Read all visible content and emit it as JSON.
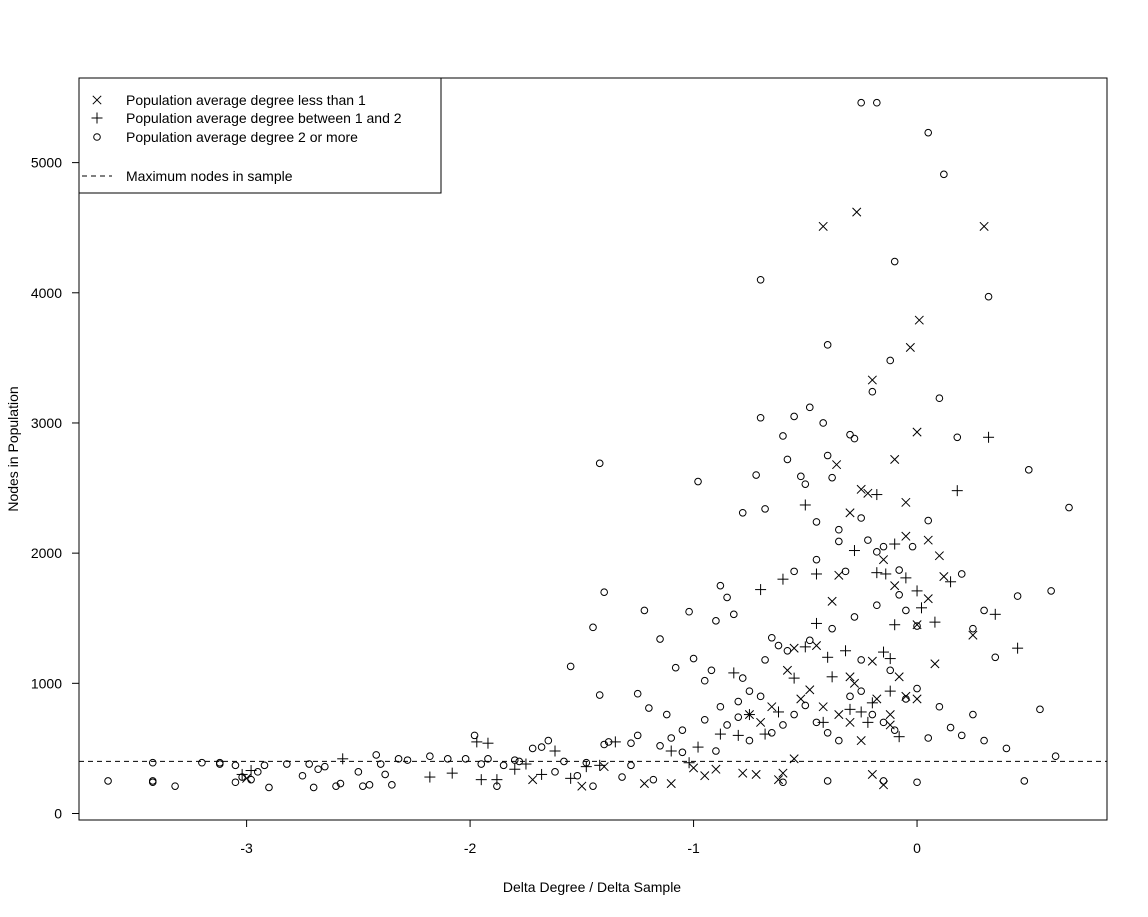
{
  "chart_data": {
    "type": "scatter",
    "title": "",
    "xlabel": "Delta Degree / Delta Sample",
    "ylabel": "Nodes in Population",
    "xlim": [
      -3.75,
      0.85
    ],
    "ylim": [
      -50,
      5650
    ],
    "xticks": [
      -3,
      -2,
      -1,
      0
    ],
    "xtick_labels": [
      "-3",
      "-2",
      "-1",
      "0"
    ],
    "yticks": [
      0,
      1000,
      2000,
      3000,
      4000,
      5000
    ],
    "ytick_labels": [
      "0",
      "1000",
      "2000",
      "3000",
      "4000",
      "5000"
    ],
    "grid": false,
    "legend_position": "top-left",
    "legend": [
      {
        "label": "Population average degree less than 1",
        "marker": "x"
      },
      {
        "label": "Population average degree between 1 and 2",
        "marker": "plus"
      },
      {
        "label": "Population average degree 2 or more",
        "marker": "circle"
      },
      {
        "label": "Maximum nodes in sample",
        "line": "dashed"
      }
    ],
    "reference_line": {
      "y": 400,
      "style": "dashed",
      "label": "Maximum nodes in sample"
    },
    "series": [
      {
        "name": "Population average degree less than 1",
        "marker": "x",
        "points": [
          [
            -3.0,
            270
          ],
          [
            -1.72,
            260
          ],
          [
            -1.5,
            210
          ],
          [
            -1.4,
            360
          ],
          [
            -1.22,
            230
          ],
          [
            -1.1,
            230
          ],
          [
            -1.0,
            350
          ],
          [
            -0.95,
            290
          ],
          [
            -0.9,
            340
          ],
          [
            -0.78,
            310
          ],
          [
            -0.72,
            300
          ],
          [
            -0.6,
            310
          ],
          [
            -0.62,
            260
          ],
          [
            -0.55,
            420
          ],
          [
            -0.2,
            300
          ],
          [
            -0.12,
            760
          ],
          [
            -0.15,
            220
          ],
          [
            -0.08,
            1050
          ],
          [
            -0.05,
            900
          ],
          [
            0.0,
            880
          ],
          [
            -0.42,
            4510
          ],
          [
            -0.27,
            4620
          ],
          [
            0.3,
            4510
          ],
          [
            0.01,
            3790
          ],
          [
            -0.03,
            3580
          ],
          [
            -0.36,
            2680
          ],
          [
            -0.2,
            3330
          ],
          [
            0.0,
            2930
          ],
          [
            -0.1,
            2720
          ],
          [
            -0.22,
            2460
          ],
          [
            -0.3,
            2310
          ],
          [
            -0.05,
            2390
          ],
          [
            -0.25,
            2490
          ],
          [
            0.1,
            1980
          ],
          [
            -0.38,
            1630
          ],
          [
            -0.35,
            1830
          ],
          [
            -0.45,
            1290
          ],
          [
            -0.3,
            1050
          ],
          [
            -0.2,
            1170
          ],
          [
            -0.05,
            2130
          ],
          [
            -0.1,
            1750
          ],
          [
            0.05,
            1650
          ],
          [
            0.12,
            1820
          ],
          [
            0.25,
            1370
          ],
          [
            -0.3,
            700
          ],
          [
            -0.35,
            760
          ],
          [
            -0.42,
            820
          ],
          [
            -0.48,
            950
          ],
          [
            -0.52,
            880
          ],
          [
            -0.58,
            1100
          ],
          [
            -0.55,
            1270
          ],
          [
            -0.65,
            820
          ],
          [
            -0.7,
            700
          ],
          [
            -0.75,
            760
          ],
          [
            -0.25,
            560
          ],
          [
            -0.18,
            880
          ],
          [
            -0.12,
            680
          ],
          [
            -0.28,
            1000
          ],
          [
            -0.15,
            1950
          ],
          [
            0.0,
            1450
          ],
          [
            0.05,
            2100
          ],
          [
            0.08,
            1150
          ]
        ]
      },
      {
        "name": "Population average degree between 1 and 2",
        "marker": "plus",
        "points": [
          [
            -3.02,
            300
          ],
          [
            -2.98,
            330
          ],
          [
            -2.57,
            420
          ],
          [
            -2.18,
            280
          ],
          [
            -2.08,
            310
          ],
          [
            -1.97,
            550
          ],
          [
            -1.92,
            540
          ],
          [
            -1.95,
            260
          ],
          [
            -1.88,
            260
          ],
          [
            -1.8,
            340
          ],
          [
            -1.75,
            380
          ],
          [
            -1.68,
            300
          ],
          [
            -1.62,
            480
          ],
          [
            -1.55,
            270
          ],
          [
            -1.48,
            360
          ],
          [
            -1.42,
            370
          ],
          [
            -1.35,
            550
          ],
          [
            -1.1,
            480
          ],
          [
            -1.02,
            390
          ],
          [
            -0.98,
            510
          ],
          [
            -0.88,
            610
          ],
          [
            -0.82,
            1080
          ],
          [
            -0.7,
            1720
          ],
          [
            -0.6,
            1800
          ],
          [
            -0.5,
            2370
          ],
          [
            -0.45,
            1840
          ],
          [
            -0.45,
            1460
          ],
          [
            -0.38,
            1050
          ],
          [
            -0.32,
            1250
          ],
          [
            -0.28,
            2020
          ],
          [
            -0.18,
            1850
          ],
          [
            -0.14,
            1840
          ],
          [
            -0.18,
            2450
          ],
          [
            -0.1,
            1450
          ],
          [
            -0.15,
            1240
          ],
          [
            -0.12,
            1190
          ],
          [
            -0.1,
            2070
          ],
          [
            -0.05,
            1810
          ],
          [
            0.0,
            1710
          ],
          [
            0.02,
            1580
          ],
          [
            0.08,
            1470
          ],
          [
            0.15,
            1780
          ],
          [
            0.18,
            2480
          ],
          [
            0.32,
            2890
          ],
          [
            0.35,
            1530
          ],
          [
            0.45,
            1270
          ],
          [
            -0.55,
            1040
          ],
          [
            -0.5,
            1280
          ],
          [
            -0.4,
            1200
          ],
          [
            -0.3,
            800
          ],
          [
            -0.22,
            700
          ],
          [
            -0.08,
            590
          ],
          [
            -0.62,
            780
          ],
          [
            -0.68,
            610
          ],
          [
            -0.75,
            760
          ],
          [
            -0.8,
            600
          ],
          [
            -0.42,
            700
          ],
          [
            -0.25,
            780
          ],
          [
            -0.2,
            850
          ],
          [
            -0.12,
            940
          ]
        ]
      },
      {
        "name": "Population average degree 2 or more",
        "marker": "circle",
        "points": [
          [
            -3.62,
            250
          ],
          [
            -3.42,
            240
          ],
          [
            -3.42,
            250
          ],
          [
            -3.32,
            210
          ],
          [
            -3.42,
            390
          ],
          [
            -3.2,
            390
          ],
          [
            -3.12,
            380
          ],
          [
            -3.12,
            390
          ],
          [
            -3.05,
            370
          ],
          [
            -3.05,
            240
          ],
          [
            -3.02,
            280
          ],
          [
            -2.98,
            260
          ],
          [
            -2.95,
            320
          ],
          [
            -2.92,
            370
          ],
          [
            -2.9,
            200
          ],
          [
            -2.82,
            380
          ],
          [
            -2.75,
            290
          ],
          [
            -2.72,
            380
          ],
          [
            -2.7,
            200
          ],
          [
            -2.68,
            340
          ],
          [
            -2.65,
            360
          ],
          [
            -2.6,
            210
          ],
          [
            -2.58,
            230
          ],
          [
            -2.5,
            320
          ],
          [
            -2.48,
            210
          ],
          [
            -2.45,
            220
          ],
          [
            -2.42,
            450
          ],
          [
            -2.4,
            380
          ],
          [
            -2.38,
            300
          ],
          [
            -2.35,
            220
          ],
          [
            -2.32,
            420
          ],
          [
            -2.28,
            410
          ],
          [
            -2.18,
            440
          ],
          [
            -2.1,
            420
          ],
          [
            -2.02,
            420
          ],
          [
            -1.98,
            600
          ],
          [
            -1.95,
            380
          ],
          [
            -1.92,
            420
          ],
          [
            -1.88,
            210
          ],
          [
            -1.85,
            370
          ],
          [
            -1.8,
            410
          ],
          [
            -1.78,
            400
          ],
          [
            -1.72,
            500
          ],
          [
            -1.68,
            510
          ],
          [
            -1.65,
            560
          ],
          [
            -1.62,
            320
          ],
          [
            -1.58,
            400
          ],
          [
            -1.55,
            1130
          ],
          [
            -1.52,
            290
          ],
          [
            -1.48,
            390
          ],
          [
            -1.45,
            1430
          ],
          [
            -1.45,
            210
          ],
          [
            -1.42,
            2690
          ],
          [
            -1.4,
            1700
          ],
          [
            -1.42,
            910
          ],
          [
            -1.4,
            530
          ],
          [
            -1.38,
            550
          ],
          [
            -1.32,
            280
          ],
          [
            -1.28,
            540
          ],
          [
            -1.28,
            370
          ],
          [
            -1.25,
            920
          ],
          [
            -1.22,
            1560
          ],
          [
            -1.2,
            810
          ],
          [
            -1.18,
            260
          ],
          [
            -1.15,
            1340
          ],
          [
            -1.12,
            760
          ],
          [
            -1.1,
            580
          ],
          [
            -1.08,
            1120
          ],
          [
            -1.05,
            470
          ],
          [
            -1.02,
            1550
          ],
          [
            -1.0,
            1190
          ],
          [
            -0.98,
            2550
          ],
          [
            -0.95,
            1020
          ],
          [
            -0.92,
            1100
          ],
          [
            -0.9,
            1480
          ],
          [
            -0.88,
            1750
          ],
          [
            -0.85,
            1660
          ],
          [
            -0.82,
            1530
          ],
          [
            -0.8,
            860
          ],
          [
            -0.78,
            2310
          ],
          [
            -0.75,
            940
          ],
          [
            -0.72,
            2600
          ],
          [
            -0.7,
            4100
          ],
          [
            -0.7,
            3040
          ],
          [
            -0.68,
            2340
          ],
          [
            -0.65,
            1350
          ],
          [
            -0.62,
            1290
          ],
          [
            -0.6,
            2900
          ],
          [
            -0.58,
            2720
          ],
          [
            -0.55,
            3050
          ],
          [
            -0.52,
            2590
          ],
          [
            -0.5,
            2530
          ],
          [
            -0.48,
            3120
          ],
          [
            -0.45,
            2240
          ],
          [
            -0.42,
            3000
          ],
          [
            -0.4,
            2750
          ],
          [
            -0.4,
            3600
          ],
          [
            -0.38,
            2580
          ],
          [
            -0.35,
            2180
          ],
          [
            -0.32,
            1860
          ],
          [
            -0.3,
            2910
          ],
          [
            -0.28,
            2880
          ],
          [
            -0.25,
            2270
          ],
          [
            -0.22,
            2100
          ],
          [
            -0.2,
            3240
          ],
          [
            -0.18,
            2010
          ],
          [
            -0.15,
            2050
          ],
          [
            -0.12,
            3480
          ],
          [
            -0.1,
            4240
          ],
          [
            -0.08,
            1870
          ],
          [
            -0.05,
            1560
          ],
          [
            -0.02,
            2050
          ],
          [
            0.0,
            1440
          ],
          [
            0.05,
            2250
          ],
          [
            0.05,
            5230
          ],
          [
            0.12,
            4910
          ],
          [
            0.1,
            3190
          ],
          [
            0.18,
            2890
          ],
          [
            0.2,
            1840
          ],
          [
            0.25,
            1420
          ],
          [
            0.3,
            1560
          ],
          [
            0.32,
            3970
          ],
          [
            0.35,
            1200
          ],
          [
            0.4,
            500
          ],
          [
            0.45,
            1670
          ],
          [
            0.5,
            2640
          ],
          [
            0.55,
            800
          ],
          [
            0.6,
            1710
          ],
          [
            0.62,
            440
          ],
          [
            0.68,
            2350
          ],
          [
            0.48,
            250
          ],
          [
            -0.25,
            5460
          ],
          [
            -0.18,
            5460
          ],
          [
            -0.9,
            480
          ],
          [
            -0.85,
            680
          ],
          [
            -0.8,
            740
          ],
          [
            -0.75,
            560
          ],
          [
            -0.7,
            900
          ],
          [
            -0.65,
            620
          ],
          [
            -0.6,
            680
          ],
          [
            -0.55,
            760
          ],
          [
            -0.5,
            830
          ],
          [
            -0.45,
            700
          ],
          [
            -0.4,
            620
          ],
          [
            -0.35,
            560
          ],
          [
            -0.3,
            900
          ],
          [
            -0.25,
            940
          ],
          [
            -0.2,
            760
          ],
          [
            -0.15,
            700
          ],
          [
            -0.1,
            640
          ],
          [
            -0.05,
            880
          ],
          [
            0.0,
            960
          ],
          [
            0.05,
            580
          ],
          [
            0.1,
            820
          ],
          [
            0.15,
            660
          ],
          [
            0.2,
            600
          ],
          [
            0.25,
            760
          ],
          [
            0.3,
            560
          ],
          [
            -0.95,
            720
          ],
          [
            -1.05,
            640
          ],
          [
            -1.15,
            520
          ],
          [
            -1.25,
            600
          ],
          [
            -0.6,
            240
          ],
          [
            -0.4,
            250
          ],
          [
            0.0,
            240
          ],
          [
            -0.15,
            250
          ],
          [
            -0.88,
            820
          ],
          [
            -0.78,
            1040
          ],
          [
            -0.68,
            1180
          ],
          [
            -0.58,
            1250
          ],
          [
            -0.48,
            1330
          ],
          [
            -0.38,
            1420
          ],
          [
            -0.28,
            1510
          ],
          [
            -0.18,
            1600
          ],
          [
            -0.08,
            1680
          ],
          [
            -0.55,
            1860
          ],
          [
            -0.45,
            1950
          ],
          [
            -0.35,
            2090
          ],
          [
            -0.25,
            1180
          ],
          [
            -0.12,
            1100
          ]
        ]
      }
    ]
  }
}
